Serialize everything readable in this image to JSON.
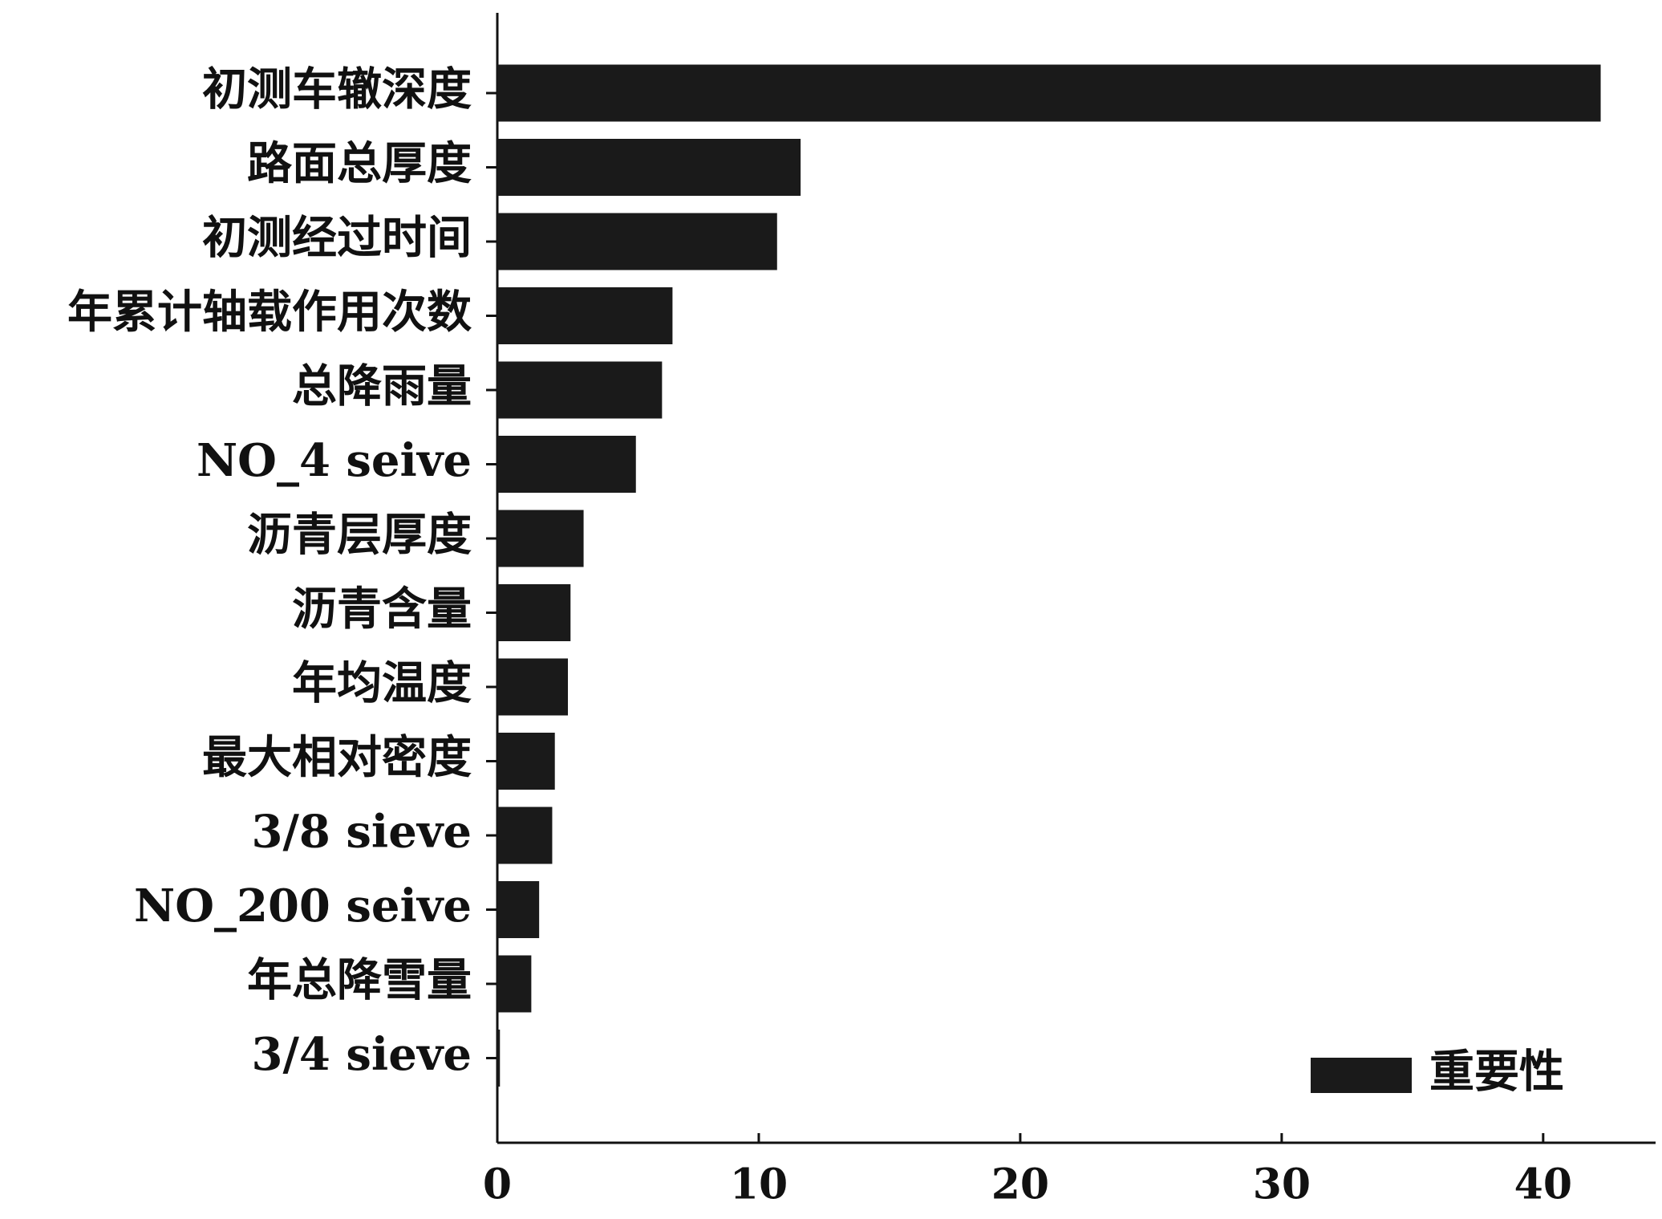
{
  "chart_data": {
    "type": "bar",
    "orientation": "horizontal",
    "categories": [
      "初测车辙深度",
      "路面总厚度",
      "初测经过时间",
      "年累计轴载作用次数",
      "总降雨量",
      "NO_4 seive",
      "沥青层厚度",
      "沥青含量",
      "年均温度",
      "最大相对密度",
      "3/8 sieve",
      "NO_200 seive",
      "年总降雪量",
      "3/4 sieve"
    ],
    "series": [
      {
        "name": "重要性",
        "color": "#1a1a1a",
        "values": [
          42.2,
          11.6,
          10.7,
          6.7,
          6.3,
          5.3,
          3.3,
          2.8,
          2.7,
          2.2,
          2.1,
          1.6,
          1.3,
          0.1
        ]
      }
    ],
    "xlim": [
      0,
      44.3
    ],
    "xticks": [
      0,
      10,
      20,
      30,
      40
    ],
    "grid": false,
    "legend": "lower right"
  }
}
